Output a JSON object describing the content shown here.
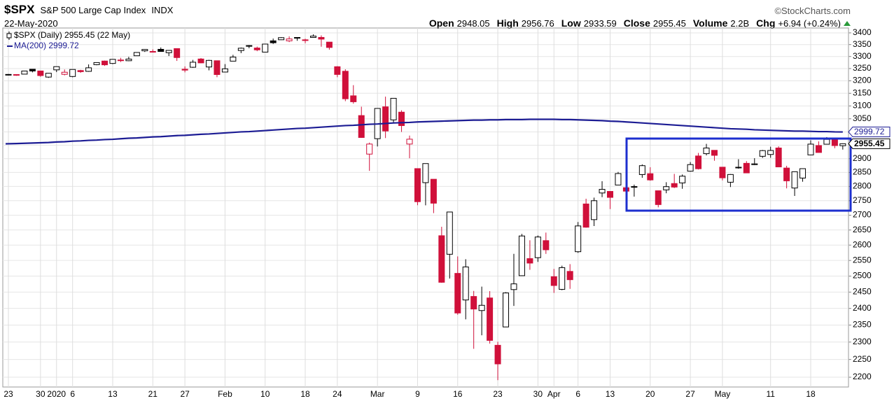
{
  "header": {
    "symbol": "$SPX",
    "name": "S&P 500 Large Cap Index",
    "exchange": "INDX",
    "source": "©StockCharts.com",
    "date": "22-May-2020",
    "stats": [
      {
        "label": "Open",
        "value": 2948.05
      },
      {
        "label": "High",
        "value": 2956.76
      },
      {
        "label": "Low",
        "value": 2933.59
      },
      {
        "label": "Close",
        "value": 2955.45
      },
      {
        "label": "Volume",
        "value": "2.2B"
      },
      {
        "label": "Chg",
        "value": "+6.94 (+0.24%)"
      }
    ]
  },
  "chart_data": {
    "type": "candlestick",
    "log_scale": true,
    "grid": true,
    "legend": "top-left",
    "ylim": [
      2173,
      3421
    ],
    "yticks": [
      2200,
      2250,
      2300,
      2350,
      2400,
      2450,
      2500,
      2550,
      2600,
      2650,
      2700,
      2750,
      2800,
      2850,
      2900,
      2950,
      3000,
      3050,
      3100,
      3150,
      3200,
      3250,
      3300,
      3350,
      3400
    ],
    "categories": [
      "23",
      null,
      null,
      null,
      "30",
      null,
      "2020",
      null,
      "6",
      null,
      null,
      null,
      null,
      "13",
      null,
      null,
      null,
      null,
      "21",
      null,
      null,
      null,
      "27",
      null,
      null,
      null,
      null,
      "Feb",
      null,
      null,
      null,
      null,
      "10",
      null,
      null,
      null,
      null,
      "18",
      null,
      null,
      null,
      "24",
      null,
      null,
      null,
      null,
      "Mar",
      null,
      null,
      null,
      null,
      "9",
      null,
      null,
      null,
      null,
      "16",
      null,
      null,
      null,
      null,
      "23",
      null,
      null,
      null,
      null,
      "30",
      null,
      "Apr",
      null,
      null,
      "6",
      null,
      null,
      null,
      "13",
      null,
      null,
      null,
      null,
      "20",
      null,
      null,
      null,
      null,
      "27",
      null,
      null,
      null,
      "May",
      null,
      null,
      null,
      null,
      null,
      "11",
      null,
      null,
      null,
      null,
      "18",
      null,
      null,
      null,
      null
    ],
    "series": [
      {
        "name": "$SPX (Daily) 2955.45 (22 May)",
        "up_color": "#000000",
        "down_color": "#d0103a",
        "open": [
          3226.0,
          3225.4,
          3227.2,
          3247.2,
          3240.1,
          3215.2,
          3244.7,
          3226.4,
          3217.6,
          3241.9,
          3238.6,
          3266.0,
          3281.0,
          3271.1,
          3285.4,
          3282.3,
          3303.0,
          3323.7,
          3321.0,
          3330.0,
          3315.8,
          3333.1,
          3247.2,
          3255.4,
          3289.5,
          3256.5,
          3282.3,
          3235.7,
          3280.6,
          3324.9,
          3344.9,
          3335.5,
          3318.3,
          3365.9,
          3370.5,
          3365.9,
          3378.1,
          3369.0,
          3380.4,
          3380.5,
          3360.5,
          3257.6,
          3238.9,
          3139.9,
          3062.5,
          2916.9,
          2974.3,
          3096.5,
          3045.8,
          3075.7,
          2954.2,
          2863.9,
          2813.5,
          2825.6,
          2630.9,
          2570.0,
          2508.6,
          2425.7,
          2436.5,
          2393.5,
          2431.9,
          2290.7,
          2344.4,
          2457.8,
          2501.3,
          2555.9,
          2559.0,
          2614.7,
          2498.1,
          2458.5,
          2514.9,
          2578.3,
          2738.7,
          2685.0,
          2777.0,
          2782.5,
          2805.1,
          2795.6,
          2799.3,
          2842.4,
          2845.6,
          2784.8,
          2787.9,
          2810.4,
          2812.6,
          2854.7,
          2910.0,
          2918.5,
          2930.9,
          2869.1,
          2815.0,
          2868.9,
          2883.1,
          2878.3,
          2908.8,
          2915.5,
          2939.5,
          2865.9,
          2794.5,
          2829.9,
          2913.9,
          2948.6,
          2953.6,
          2970.0,
          2948.05
        ],
        "high": [
          3227.8,
          3226.4,
          3240.1,
          3247.9,
          3240.9,
          3231.7,
          3258.1,
          3246.2,
          3246.8,
          3244.9,
          3267.1,
          3275.6,
          3283.0,
          3288.1,
          3294.3,
          3298.7,
          3317.1,
          3329.9,
          3329.8,
          3337.8,
          3326.9,
          3333.2,
          3258.9,
          3285.8,
          3293.5,
          3285.9,
          3282.3,
          3268.4,
          3306.9,
          3337.6,
          3348.0,
          3341.4,
          3352.3,
          3375.6,
          3381.5,
          3385.1,
          3380.7,
          3375.0,
          3393.5,
          3389.2,
          3360.8,
          3259.8,
          3247.0,
          3182.5,
          3097.1,
          2959.7,
          3091.0,
          3136.7,
          3131.0,
          3083.0,
          2985.9,
          2863.9,
          2882.6,
          2825.6,
          2660.9,
          2711.3,
          2563.0,
          2553.9,
          2453.6,
          2467.0,
          2453.0,
          2300.7,
          2449.7,
          2571.4,
          2637.0,
          2615.9,
          2631.8,
          2641.4,
          2522.8,
          2533.2,
          2538.2,
          2676.9,
          2756.9,
          2760.8,
          2818.6,
          2782.5,
          2851.9,
          2801.9,
          2806.5,
          2879.2,
          2869.0,
          2785.5,
          2815.1,
          2844.9,
          2842.7,
          2887.7,
          2921.2,
          2954.9,
          2930.9,
          2869.1,
          2844.2,
          2898.2,
          2891.1,
          2901.9,
          2932.2,
          2944.3,
          2945.8,
          2874.1,
          2852.8,
          2865.0,
          2968.1,
          2964.2,
          2980.3,
          2978.5,
          2956.76
        ],
        "low": [
          3222.3,
          3220.5,
          3227.2,
          3234.4,
          3216.6,
          3212.0,
          3235.5,
          3222.3,
          3214.6,
          3232.4,
          3236.7,
          3263.7,
          3260.9,
          3268.4,
          3277.0,
          3280.7,
          3302.8,
          3318.9,
          3316.6,
          3320.0,
          3301.9,
          3281.5,
          3234.5,
          3253.2,
          3271.9,
          3242.8,
          3214.7,
          3235.7,
          3280.6,
          3313.8,
          3334.4,
          3322.1,
          3317.8,
          3352.7,
          3369.7,
          3360.5,
          3366.2,
          3355.6,
          3378.8,
          3341.0,
          3328.5,
          3214.7,
          3118.8,
          3109.0,
          2977.4,
          2855.8,
          2945.2,
          2976.6,
          3034.4,
          2999.8,
          2901.5,
          2734.4,
          2734.0,
          2707.2,
          2478.9,
          2492.4,
          2380.9,
          2367.0,
          2280.5,
          2319.8,
          2295.6,
          2191.9,
          2344.4,
          2407.5,
          2500.7,
          2520.0,
          2545.3,
          2571.2,
          2447.5,
          2455.8,
          2460.0,
          2574.6,
          2657.7,
          2663.3,
          2762.4,
          2721.2,
          2805.1,
          2761.5,
          2764.3,
          2830.9,
          2820.4,
          2727.1,
          2776.0,
          2794.3,
          2791.8,
          2852.9,
          2860.7,
          2912.2,
          2892.5,
          2821.6,
          2797.9,
          2863.6,
          2847.7,
          2876.5,
          2902.9,
          2903.4,
          2869.6,
          2793.2,
          2766.6,
          2816.8,
          2913.9,
          2922.4,
          2953.6,
          2938.6,
          2933.59
        ],
        "close": [
          3224.0,
          3223.4,
          3239.9,
          3240.0,
          3221.3,
          3230.8,
          3257.9,
          3234.9,
          3246.3,
          3237.2,
          3253.1,
          3274.7,
          3265.4,
          3288.1,
          3283.2,
          3289.3,
          3316.8,
          3329.6,
          3321.0,
          3321.1,
          3325.5,
          3295.5,
          3243.6,
          3276.2,
          3273.4,
          3283.7,
          3225.5,
          3248.9,
          3297.6,
          3334.7,
          3345.8,
          3327.7,
          3352.1,
          3357.8,
          3379.5,
          3373.9,
          3380.2,
          3370.3,
          3386.2,
          3373.2,
          3337.8,
          3225.9,
          3128.2,
          3116.4,
          2978.8,
          2954.2,
          3090.2,
          3003.4,
          3130.1,
          3023.9,
          2972.4,
          2746.6,
          2882.2,
          2741.4,
          2480.6,
          2711.0,
          2386.1,
          2529.2,
          2398.1,
          2409.4,
          2304.9,
          2237.4,
          2447.3,
          2475.6,
          2630.1,
          2541.5,
          2626.7,
          2584.6,
          2470.5,
          2526.9,
          2488.7,
          2663.7,
          2659.4,
          2750.0,
          2789.8,
          2761.6,
          2846.1,
          2783.4,
          2799.6,
          2874.6,
          2823.2,
          2736.6,
          2799.3,
          2797.8,
          2836.7,
          2878.5,
          2863.4,
          2939.5,
          2912.4,
          2830.7,
          2842.7,
          2868.4,
          2848.4,
          2881.2,
          2929.8,
          2930.3,
          2870.1,
          2820.0,
          2852.5,
          2863.7,
          2953.9,
          2922.9,
          2971.6,
          2948.5,
          2955.45
        ]
      },
      {
        "name": "MA(200) 2999.72",
        "color": "#1c1c94",
        "values": [
          2955,
          2956,
          2957,
          2958,
          2959,
          2960,
          2962,
          2963,
          2965,
          2966,
          2968,
          2969,
          2971,
          2972,
          2974,
          2976,
          2977,
          2979,
          2981,
          2982,
          2984,
          2986,
          2987,
          2989,
          2991,
          2992,
          2994,
          2996,
          2998,
          3000,
          3001,
          3003,
          3005,
          3007,
          3009,
          3011,
          3013,
          3014,
          3016,
          3018,
          3020,
          3022,
          3024,
          3025,
          3027,
          3029,
          3030,
          3032,
          3034,
          3035,
          3036,
          3038,
          3039,
          3040,
          3041,
          3042,
          3043,
          3044,
          3045,
          3045,
          3046,
          3046,
          3047,
          3047,
          3047,
          3048,
          3048,
          3048,
          3048,
          3047,
          3047,
          3046,
          3045,
          3044,
          3043,
          3041,
          3040,
          3038,
          3036,
          3034,
          3032,
          3030,
          3028,
          3026,
          3024,
          3022,
          3020,
          3018,
          3016,
          3014,
          3012,
          3011,
          3010,
          3008,
          3007,
          3006,
          3005,
          3004,
          3003,
          3003,
          3002,
          3001,
          3001,
          3000,
          2999.72
        ]
      }
    ]
  }
}
